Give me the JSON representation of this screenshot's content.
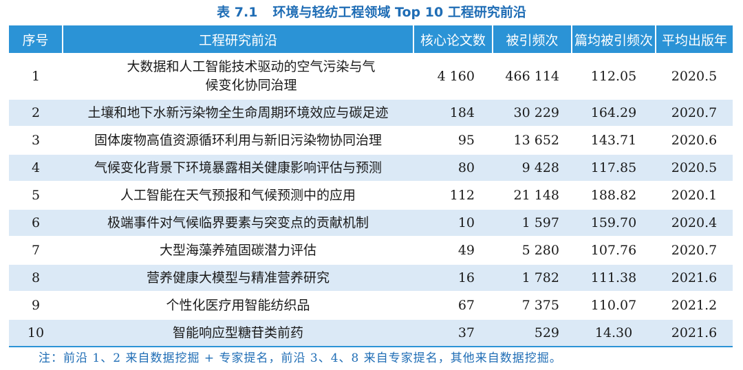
{
  "caption": {
    "number": "表 7.1",
    "title": "环境与轻纺工程领域 Top 10 工程研究前沿"
  },
  "table": {
    "headers": [
      "序号",
      "工程研究前沿",
      "核心论文数",
      "被引频次",
      "篇均被引频次",
      "平均出版年"
    ],
    "rows": [
      {
        "no": "1",
        "topic": "大数据和人工智能技术驱动的空气污染与气候变化协同治理",
        "papers": "4 160",
        "citations": "466 114",
        "avg_citations": "112.05",
        "avg_year": "2020.5"
      },
      {
        "no": "2",
        "topic": "土壤和地下水新污染物全生命周期环境效应与碳足迹",
        "papers": "184",
        "citations": "30 229",
        "avg_citations": "164.29",
        "avg_year": "2020.7"
      },
      {
        "no": "3",
        "topic": "固体废物高值资源循环利用与新旧污染物协同治理",
        "papers": "95",
        "citations": "13 652",
        "avg_citations": "143.71",
        "avg_year": "2020.6"
      },
      {
        "no": "4",
        "topic": "气候变化背景下环境暴露相关健康影响评估与预测",
        "papers": "80",
        "citations": "9 428",
        "avg_citations": "117.85",
        "avg_year": "2020.5"
      },
      {
        "no": "5",
        "topic": "人工智能在天气预报和气候预测中的应用",
        "papers": "112",
        "citations": "21 148",
        "avg_citations": "188.82",
        "avg_year": "2020.1"
      },
      {
        "no": "6",
        "topic": "极端事件对气候临界要素与突变点的贡献机制",
        "papers": "10",
        "citations": "1 597",
        "avg_citations": "159.70",
        "avg_year": "2020.4"
      },
      {
        "no": "7",
        "topic": "大型海藻养殖固碳潜力评估",
        "papers": "49",
        "citations": "5 280",
        "avg_citations": "107.76",
        "avg_year": "2020.7"
      },
      {
        "no": "8",
        "topic": "营养健康大模型与精准营养研究",
        "papers": "16",
        "citations": "1 782",
        "avg_citations": "111.38",
        "avg_year": "2021.6"
      },
      {
        "no": "9",
        "topic": "个性化医疗用智能纺织品",
        "papers": "67",
        "citations": "7 375",
        "avg_citations": "110.07",
        "avg_year": "2021.2"
      },
      {
        "no": "10",
        "topic": "智能响应型糖苷类前药",
        "papers": "37",
        "citations": "529",
        "avg_citations": "14.30",
        "avg_year": "2021.6"
      }
    ]
  },
  "note": "注：前沿 1、2 来自数据挖掘 + 专家提名，前沿 3、4、8 来自专家提名，其他来自数据挖掘。",
  "colors": {
    "header_bg": "#2b93d6",
    "stripe_bg": "#dbe9f6",
    "caption_text": "#1f6db5"
  }
}
